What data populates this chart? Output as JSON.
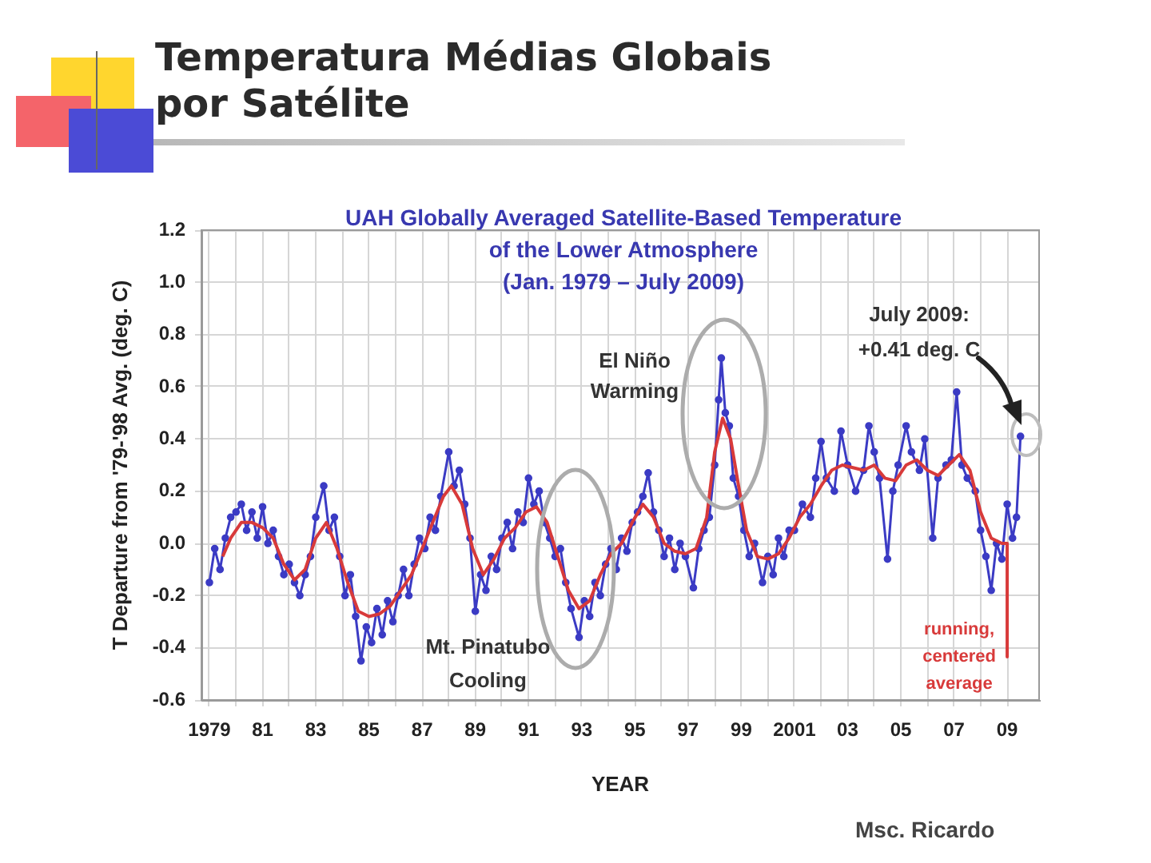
{
  "chart_data": {
    "type": "line",
    "title": "Temperatura Médias Globais por Satélite",
    "subtitle": "UAH Globally Averaged Satellite-Based Temperature\nof the Lower Atmosphere\n(Jan. 1979 – July 2009)",
    "xlabel": "YEAR",
    "ylabel": "T Departure from '79-'98 Avg. (deg. C)",
    "xlim": [
      1978.7,
      2010.2
    ],
    "xticks": [
      1979,
      {
        "value": 1980,
        "label": null
      },
      {
        "value": 1981,
        "label": "81"
      },
      {
        "value": 1982,
        "label": null
      },
      {
        "value": 1983,
        "label": "83"
      },
      {
        "value": 1984,
        "label": null
      },
      {
        "value": 1985,
        "label": "85"
      },
      {
        "value": 1986,
        "label": null
      },
      {
        "value": 1987,
        "label": "87"
      },
      {
        "value": 1988,
        "label": null
      },
      {
        "value": 1989,
        "label": "89"
      },
      {
        "value": 1990,
        "label": null
      },
      {
        "value": 1991,
        "label": "91"
      },
      {
        "value": 1992,
        "label": null
      },
      {
        "value": 1993,
        "label": "93"
      },
      {
        "value": 1994,
        "label": null
      },
      {
        "value": 1995,
        "label": "95"
      },
      {
        "value": 1996,
        "label": null
      },
      {
        "value": 1997,
        "label": "97"
      },
      {
        "value": 1998,
        "label": null
      },
      {
        "value": 1999,
        "label": "99"
      },
      {
        "value": 2000,
        "label": null
      },
      2001,
      {
        "value": 2002,
        "label": null
      },
      {
        "value": 2003,
        "label": "03"
      },
      {
        "value": 2004,
        "label": null
      },
      {
        "value": 2005,
        "label": "05"
      },
      {
        "value": 2006,
        "label": null
      },
      {
        "value": 2007,
        "label": "07"
      },
      {
        "value": 2008,
        "label": null
      },
      {
        "value": 2009,
        "label": "09"
      }
    ],
    "ylim": [
      -0.6,
      1.2
    ],
    "yticks": [
      -0.6,
      -0.4,
      -0.2,
      {
        "value": 0,
        "label": "0.0"
      },
      0.2,
      0.4,
      0.6,
      0.8,
      {
        "value": 1,
        "label": "1.0"
      },
      1.2
    ],
    "grid": true,
    "series": [
      {
        "color": "#3b3bc4",
        "marker": "circle",
        "x": [
          1979.0,
          1979.2,
          1979.4,
          1979.6,
          1979.8,
          1980.0,
          1980.2,
          1980.4,
          1980.6,
          1980.8,
          1981.0,
          1981.2,
          1981.4,
          1981.6,
          1981.8,
          1982.0,
          1982.2,
          1982.4,
          1982.6,
          1982.8,
          1983.0,
          1983.3,
          1983.5,
          1983.7,
          1983.9,
          1984.1,
          1984.3,
          1984.5,
          1984.7,
          1984.9,
          1985.1,
          1985.3,
          1985.5,
          1985.7,
          1985.9,
          1986.1,
          1986.3,
          1986.5,
          1986.7,
          1986.9,
          1987.1,
          1987.3,
          1987.5,
          1987.7,
          1988.0,
          1988.2,
          1988.4,
          1988.6,
          1988.8,
          1989.0,
          1989.2,
          1989.4,
          1989.6,
          1989.8,
          1990.0,
          1990.2,
          1990.4,
          1990.6,
          1990.8,
          1991.0,
          1991.2,
          1991.4,
          1991.6,
          1991.8,
          1992.0,
          1992.2,
          1992.4,
          1992.6,
          1992.9,
          1993.1,
          1993.3,
          1993.5,
          1993.7,
          1993.9,
          1994.1,
          1994.3,
          1994.5,
          1994.7,
          1994.9,
          1995.1,
          1995.3,
          1995.5,
          1995.7,
          1995.9,
          1996.1,
          1996.3,
          1996.5,
          1996.7,
          1996.9,
          1997.2,
          1997.4,
          1997.6,
          1997.8,
          1998.0,
          1998.15,
          1998.25,
          1998.4,
          1998.55,
          1998.7,
          1998.9,
          1999.1,
          1999.3,
          1999.5,
          1999.8,
          2000.0,
          2000.2,
          2000.4,
          2000.6,
          2000.8,
          2001.0,
          2001.3,
          2001.6,
          2001.8,
          2002.0,
          2002.2,
          2002.5,
          2002.75,
          2003.0,
          2003.3,
          2003.6,
          2003.8,
          2004.0,
          2004.2,
          2004.5,
          2004.7,
          2004.9,
          2005.2,
          2005.4,
          2005.7,
          2005.9,
          2006.2,
          2006.4,
          2006.7,
          2006.9,
          2007.1,
          2007.3,
          2007.5,
          2007.8,
          2008.0,
          2008.2,
          2008.4,
          2008.6,
          2008.8,
          2009.0,
          2009.2,
          2009.35,
          2009.5
        ],
        "values": [
          -0.15,
          -0.02,
          -0.1,
          0.02,
          0.1,
          0.12,
          0.15,
          0.05,
          0.12,
          0.02,
          0.14,
          0,
          0.05,
          -0.05,
          -0.12,
          -0.08,
          -0.15,
          -0.2,
          -0.12,
          -0.05,
          0.1,
          0.22,
          0.05,
          0.1,
          -0.05,
          -0.2,
          -0.12,
          -0.28,
          -0.45,
          -0.32,
          -0.38,
          -0.25,
          -0.35,
          -0.22,
          -0.3,
          -0.2,
          -0.1,
          -0.2,
          -0.08,
          0.02,
          -0.02,
          0.1,
          0.05,
          0.18,
          0.35,
          0.22,
          0.28,
          0.15,
          0.02,
          -0.26,
          -0.12,
          -0.18,
          -0.05,
          -0.1,
          0.02,
          0.08,
          -0.02,
          0.12,
          0.08,
          0.25,
          0.15,
          0.2,
          0.08,
          0.02,
          -0.05,
          -0.02,
          -0.15,
          -0.25,
          -0.36,
          -0.22,
          -0.28,
          -0.15,
          -0.2,
          -0.08,
          -0.02,
          -0.1,
          0.02,
          -0.03,
          0.08,
          0.12,
          0.18,
          0.27,
          0.12,
          0.05,
          -0.05,
          0.02,
          -0.1,
          0,
          -0.05,
          -0.17,
          -0.02,
          0.05,
          0.1,
          0.3,
          0.55,
          0.71,
          0.5,
          0.45,
          0.25,
          0.18,
          0.05,
          -0.05,
          0,
          -0.15,
          -0.05,
          -0.12,
          0.02,
          -0.05,
          0.05,
          0.05,
          0.15,
          0.1,
          0.25,
          0.39,
          0.25,
          0.2,
          0.43,
          0.3,
          0.2,
          0.28,
          0.45,
          0.35,
          0.25,
          -0.06,
          0.2,
          0.3,
          0.45,
          0.35,
          0.28,
          0.4,
          0.02,
          0.25,
          0.3,
          0.32,
          0.58,
          0.3,
          0.25,
          0.2,
          0.05,
          -0.05,
          -0.18,
          0,
          -0.06,
          0.15,
          0.02,
          0.1,
          0.41
        ]
      },
      {
        "color": "#d83a3a",
        "marker": "none",
        "x": [
          1979.5,
          1979.8,
          1980.2,
          1980.6,
          1981.0,
          1981.4,
          1981.8,
          1982.2,
          1982.6,
          1983.0,
          1983.4,
          1983.8,
          1984.2,
          1984.6,
          1985.0,
          1985.4,
          1985.8,
          1986.2,
          1986.6,
          1987.0,
          1987.4,
          1987.8,
          1988.1,
          1988.5,
          1988.9,
          1989.3,
          1989.7,
          1990.1,
          1990.5,
          1990.9,
          1991.3,
          1991.7,
          1992.1,
          1992.5,
          1992.9,
          1993.3,
          1993.7,
          1994.1,
          1994.5,
          1994.9,
          1995.3,
          1995.7,
          1996.1,
          1996.5,
          1996.9,
          1997.3,
          1997.7,
          1998.0,
          1998.3,
          1998.6,
          1998.9,
          1999.2,
          1999.6,
          2000.0,
          2000.4,
          2000.8,
          2001.2,
          2001.6,
          2002.0,
          2002.4,
          2002.8,
          2003.2,
          2003.6,
          2004.0,
          2004.4,
          2004.8,
          2005.2,
          2005.6,
          2006.0,
          2006.4,
          2006.8,
          2007.2,
          2007.6,
          2008.0,
          2008.4,
          2008.8,
          2009.0
        ],
        "values": [
          -0.05,
          0.02,
          0.08,
          0.08,
          0.06,
          0.02,
          -0.08,
          -0.14,
          -0.1,
          0.02,
          0.08,
          -0.02,
          -0.15,
          -0.26,
          -0.28,
          -0.27,
          -0.24,
          -0.18,
          -0.12,
          -0.02,
          0.08,
          0.18,
          0.22,
          0.15,
          -0.02,
          -0.12,
          -0.06,
          0.02,
          0.06,
          0.12,
          0.14,
          0.08,
          -0.05,
          -0.18,
          -0.25,
          -0.22,
          -0.12,
          -0.04,
          0,
          0.08,
          0.15,
          0.1,
          0,
          -0.03,
          -0.04,
          -0.02,
          0.1,
          0.35,
          0.48,
          0.4,
          0.22,
          0.05,
          -0.05,
          -0.06,
          -0.04,
          0.02,
          0.1,
          0.15,
          0.22,
          0.28,
          0.3,
          0.29,
          0.28,
          0.3,
          0.25,
          0.24,
          0.3,
          0.32,
          0.28,
          0.26,
          0.3,
          0.34,
          0.28,
          0.12,
          0.02,
          0,
          0
        ]
      }
    ],
    "annotations": [
      "El Niño Warming",
      {
        "text": "Mt. Pinatubo Cooling",
        "x": 1992.9,
        "y": -0.36
      },
      "July 2009: +0.41 deg. C",
      {
        "text": "running, centered average",
        "x": 2009.0,
        "y": 0
      },
      "Msc. Ricardo"
    ]
  }
}
